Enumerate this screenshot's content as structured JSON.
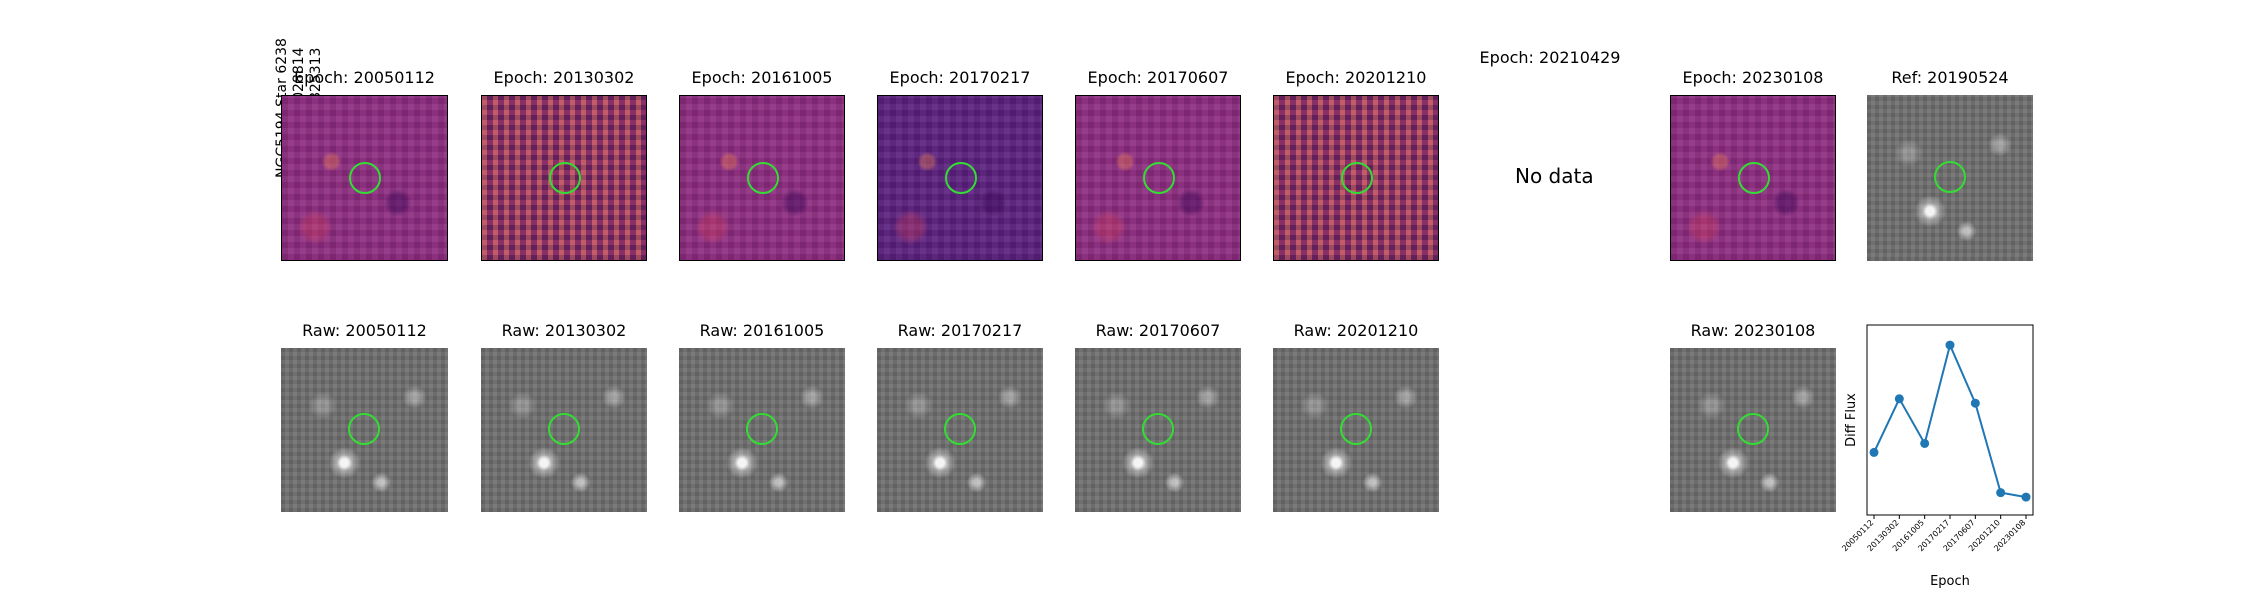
{
  "star_info": {
    "line1": "NGC5194 Star 6238",
    "line2": "RA: 202.5028814",
    "line3": "Dec: 47.1825313"
  },
  "diff_panels": [
    {
      "title": "Epoch: 20050112"
    },
    {
      "title": "Epoch: 20130302"
    },
    {
      "title": "Epoch: 20161005"
    },
    {
      "title": "Epoch: 20170217"
    },
    {
      "title": "Epoch: 20170607"
    },
    {
      "title": "Epoch: 20201210"
    },
    {
      "title": "Epoch: 20210429",
      "note": "No data"
    },
    {
      "title": "Epoch: 20230108"
    }
  ],
  "ref_panel": {
    "title": "Ref: 20190524"
  },
  "raw_panels": [
    {
      "title": "Raw: 20050112"
    },
    {
      "title": "Raw: 20130302"
    },
    {
      "title": "Raw: 20161005"
    },
    {
      "title": "Raw: 20170217"
    },
    {
      "title": "Raw: 20170607"
    },
    {
      "title": "Raw: 20201210"
    },
    {
      "title": "Raw: 20230108"
    }
  ],
  "colors": {
    "diff": "#8c2a7f",
    "ring": "#33dd33",
    "line": "#1f77b4"
  },
  "chart_data": {
    "type": "line",
    "title": "",
    "xlabel": "Epoch",
    "ylabel": "Diff Flux",
    "categories": [
      "20050112",
      "20130302",
      "20161005",
      "20170217",
      "20170607",
      "20201210",
      "20230108"
    ],
    "series": [
      {
        "name": "Diff Flux",
        "values": [
          0.38,
          0.62,
          0.42,
          0.86,
          0.6,
          0.2,
          0.18
        ]
      }
    ],
    "ylim": [
      0.1,
      0.95
    ],
    "yticks": "hidden",
    "grid": false
  }
}
